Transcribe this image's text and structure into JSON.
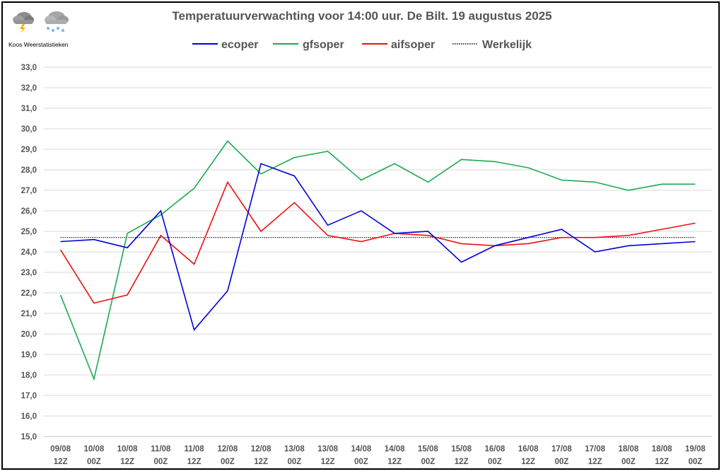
{
  "logo": {
    "text": "Koos Weerstatistieken"
  },
  "chart_data": {
    "type": "line",
    "title": "Temperatuurverwachting voor 14:00 uur. De Bilt. 19 augustus 2025",
    "xlabel": "",
    "ylabel": "",
    "ylim": [
      15.0,
      33.0
    ],
    "ytick_step": 1.0,
    "grid": true,
    "legend_position": "top",
    "categories": [
      [
        "09/08",
        "12Z"
      ],
      [
        "10/08",
        "00Z"
      ],
      [
        "10/08",
        "12Z"
      ],
      [
        "11/08",
        "00Z"
      ],
      [
        "11/08",
        "12Z"
      ],
      [
        "12/08",
        "00Z"
      ],
      [
        "12/08",
        "12Z"
      ],
      [
        "13/08",
        "00Z"
      ],
      [
        "13/08",
        "12Z"
      ],
      [
        "14/08",
        "00Z"
      ],
      [
        "14/08",
        "12Z"
      ],
      [
        "15/08",
        "00Z"
      ],
      [
        "15/08",
        "12Z"
      ],
      [
        "16/08",
        "00Z"
      ],
      [
        "16/08",
        "12Z"
      ],
      [
        "17/08",
        "00Z"
      ],
      [
        "17/08",
        "12Z"
      ],
      [
        "18/08",
        "00Z"
      ],
      [
        "18/08",
        "12Z"
      ],
      [
        "19/08",
        "00Z"
      ]
    ],
    "series": [
      {
        "name": "ecoper",
        "color": "#0000dd",
        "style": "solid",
        "values": [
          24.5,
          24.6,
          24.2,
          26.0,
          20.2,
          22.1,
          28.3,
          27.7,
          25.3,
          26.0,
          24.9,
          25.0,
          23.5,
          24.3,
          24.7,
          25.1,
          24.0,
          24.3,
          24.4,
          24.5
        ]
      },
      {
        "name": "gfsoper",
        "color": "#1aab50",
        "style": "solid",
        "values": [
          21.9,
          17.8,
          24.9,
          25.8,
          27.1,
          29.4,
          27.8,
          28.6,
          28.9,
          27.5,
          28.3,
          27.4,
          28.5,
          28.4,
          28.1,
          27.5,
          27.4,
          27.0,
          27.3,
          27.3
        ]
      },
      {
        "name": "aifsoper",
        "color": "#ee1111",
        "style": "solid",
        "values": [
          24.1,
          21.5,
          21.9,
          24.8,
          23.4,
          27.4,
          25.0,
          26.4,
          24.8,
          24.5,
          24.9,
          24.8,
          24.4,
          24.3,
          24.4,
          24.7,
          24.7,
          24.8,
          25.1,
          25.4
        ]
      },
      {
        "name": "Werkelijk",
        "color": "#000000",
        "style": "dotted",
        "values": [
          24.7,
          24.7,
          24.7,
          24.7,
          24.7,
          24.7,
          24.7,
          24.7,
          24.7,
          24.7,
          24.7,
          24.7,
          24.7,
          24.7,
          24.7,
          24.7,
          24.7,
          24.7,
          24.7,
          24.7
        ]
      }
    ]
  }
}
